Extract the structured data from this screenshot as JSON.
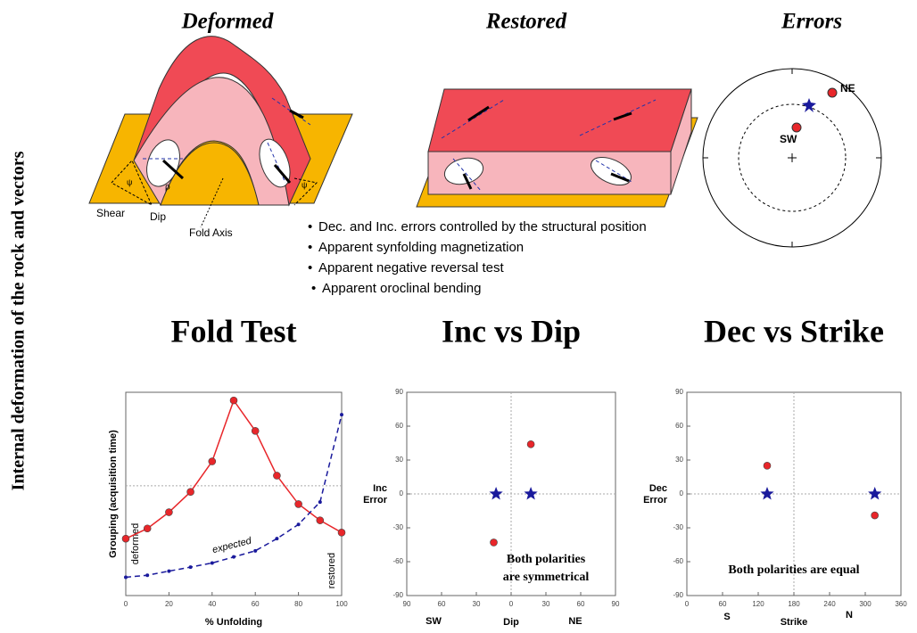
{
  "side_title": "Internal deformation  of the rock and vectors",
  "diagrams": [
    {
      "title": "Deformed",
      "labels": [
        "Shear",
        "Dip",
        "Fold Axis",
        "ψ",
        "ρ",
        "ψ"
      ]
    },
    {
      "title": "Restored"
    },
    {
      "title": "Errors",
      "labels": [
        "NE",
        "SW"
      ]
    }
  ],
  "bullets": [
    "Dec. and Inc. errors controlled by the structural position",
    "Apparent synfolding magnetization",
    "Apparent negative reversal test",
    "Apparent oroclinal bending"
  ],
  "chart_data": [
    {
      "type": "line",
      "title": "Fold Test",
      "xlabel": "% Unfolding",
      "ylabel": "Grouping (acquisition time)",
      "xlim": [
        0,
        100
      ],
      "xticks": [
        0,
        20,
        40,
        60,
        80,
        100
      ],
      "ylim": [
        0,
        100
      ],
      "hlines": [
        54
      ],
      "annotations": [
        "deformed",
        "expected",
        "restored"
      ],
      "series": [
        {
          "color": "#e8262a",
          "marker": "circle",
          "x": [
            0,
            10,
            20,
            30,
            40,
            50,
            60,
            70,
            80,
            90,
            100
          ],
          "values": [
            28,
            33,
            41,
            51,
            66,
            96,
            81,
            59,
            45,
            37,
            31
          ]
        },
        {
          "color": "#1a1a9c",
          "marker": "dot",
          "dash": true,
          "x": [
            0,
            10,
            20,
            30,
            40,
            50,
            60,
            70,
            80,
            90,
            100
          ],
          "values": [
            9,
            10,
            12,
            14,
            16,
            19,
            22,
            28,
            35,
            46,
            89
          ]
        }
      ]
    },
    {
      "type": "scatter",
      "title": "Inc vs Dip",
      "xlabel": "Dip",
      "ylabel": [
        "Inc",
        "Error"
      ],
      "xlim": [
        -90,
        90
      ],
      "xticks": [
        {
          "value": -90,
          "label": "90"
        },
        {
          "value": -60,
          "label": "60"
        },
        {
          "value": -30,
          "label": "30"
        },
        0,
        30,
        60,
        90
      ],
      "ylim": [
        -90,
        90
      ],
      "yticks": [
        90,
        60,
        30,
        0,
        -30,
        -60,
        -90
      ],
      "hlines": [
        0
      ],
      "vlines": [
        0
      ],
      "annotations": [
        "SW",
        "NE",
        "Both polarities",
        "are  symmetrical"
      ],
      "series": [
        {
          "color": "#e8262a",
          "marker": "circle",
          "x": [
            17,
            -15
          ],
          "values": [
            44,
            -43
          ]
        },
        {
          "color": "#1a1a9c",
          "marker": "star",
          "x": [
            -13,
            17
          ],
          "values": [
            0,
            0
          ]
        }
      ]
    },
    {
      "type": "scatter",
      "title": "Dec vs Strike",
      "xlabel": "Strike",
      "ylabel": [
        "Dec",
        "Error"
      ],
      "xlim": [
        0,
        360
      ],
      "xticks": [
        0,
        60,
        120,
        180,
        240,
        300,
        360
      ],
      "ylim": [
        -90,
        90
      ],
      "yticks": [
        90,
        60,
        30,
        0,
        -30,
        -60,
        -90
      ],
      "hlines": [
        0
      ],
      "vlines": [
        180
      ],
      "annotations": [
        "S",
        "N",
        "Both polarities are equal"
      ],
      "series": [
        {
          "color": "#e8262a",
          "marker": "circle",
          "x": [
            135,
            316
          ],
          "values": [
            25,
            -19
          ]
        },
        {
          "color": "#1a1a9c",
          "marker": "star",
          "x": [
            135,
            316
          ],
          "values": [
            0,
            0
          ]
        }
      ]
    }
  ]
}
